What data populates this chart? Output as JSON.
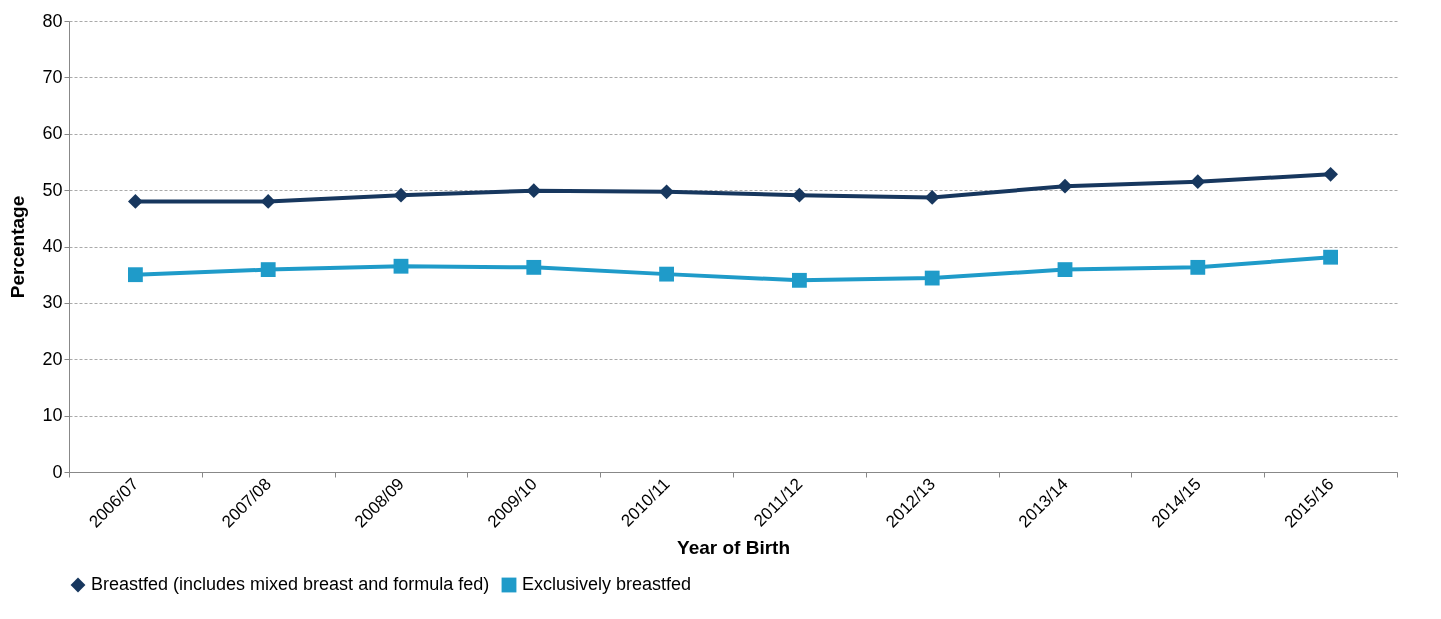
{
  "chart_data": {
    "type": "line",
    "xlabel": "Year of Birth",
    "ylabel": "Percentage",
    "categories": [
      "2006/07",
      "2007/08",
      "2008/09",
      "2009/10",
      "2010/11",
      "2011/12",
      "2012/13",
      "2013/14",
      "2014/15",
      "2015/16"
    ],
    "series": [
      {
        "name": "Breastfed (includes mixed breast and formula fed)",
        "color": "#17375e",
        "marker": "diamond",
        "values": [
          48.0,
          48.0,
          49.1,
          49.9,
          49.7,
          49.1,
          48.7,
          50.7,
          51.5,
          52.8
        ]
      },
      {
        "name": "Exclusively breastfed",
        "color": "#1f9bc9",
        "marker": "square",
        "values": [
          35.0,
          35.9,
          36.5,
          36.3,
          35.1,
          34.0,
          34.4,
          35.9,
          36.3,
          38.1
        ]
      }
    ],
    "ylim": [
      0,
      80
    ],
    "yticks": [
      0,
      10,
      20,
      30,
      40,
      50,
      60,
      70,
      80
    ],
    "grid": "y",
    "legend": "bottom",
    "line_style": "solid"
  }
}
